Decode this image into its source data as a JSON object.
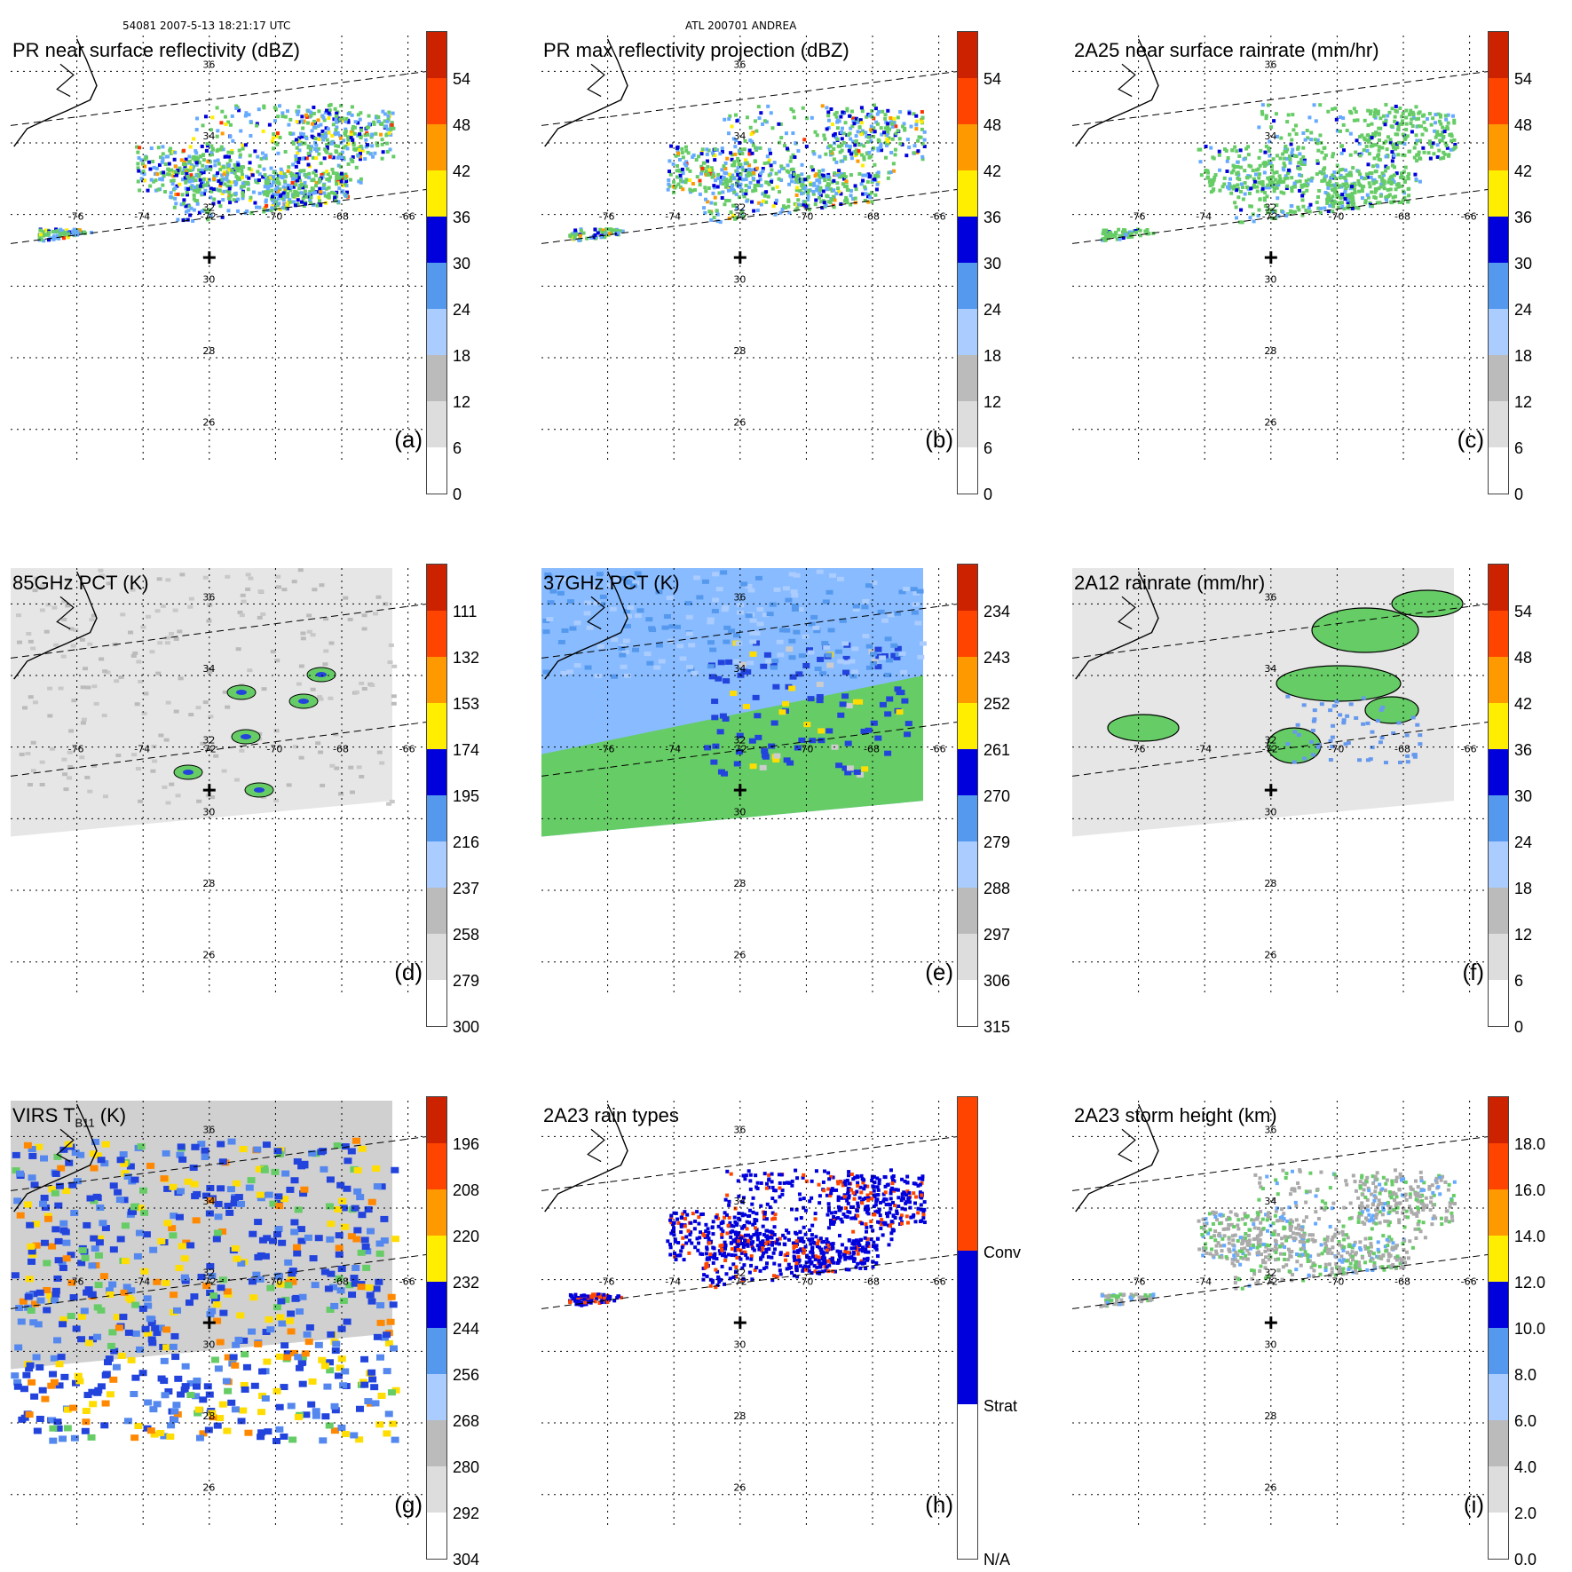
{
  "header": {
    "orbit": "54081 2007-5-13 18:21:17 UTC",
    "storm": "ATL 200701 ANDREA"
  },
  "map": {
    "lon_labels": [
      "-76",
      "-74",
      "-72",
      "-70",
      "-68",
      "-66"
    ],
    "lat_labels": [
      "36",
      "34",
      "32",
      "30",
      "28",
      "26"
    ],
    "storm_center": {
      "lon": -72,
      "lat": 30.8
    }
  },
  "chart_data": [
    {
      "id": "a",
      "type": "heatmap",
      "title": "PR near surface reflectivity (dBZ)",
      "letter": "(a)",
      "colorbar": {
        "ticks": [
          "0",
          "6",
          "12",
          "18",
          "24",
          "30",
          "36",
          "42",
          "48",
          "54"
        ],
        "range": [
          0,
          60
        ]
      },
      "swath": "PR"
    },
    {
      "id": "b",
      "type": "heatmap",
      "title": "PR max reflectivity projection (dBZ)",
      "letter": "(b)",
      "colorbar": {
        "ticks": [
          "0",
          "6",
          "12",
          "18",
          "24",
          "30",
          "36",
          "42",
          "48",
          "54"
        ],
        "range": [
          0,
          60
        ]
      },
      "swath": "PR"
    },
    {
      "id": "c",
      "type": "heatmap",
      "title": "2A25 near surface rainrate (mm/hr)",
      "letter": "(c)",
      "colorbar": {
        "ticks": [
          "0",
          "6",
          "12",
          "18",
          "24",
          "30",
          "36",
          "42",
          "48",
          "54"
        ],
        "range": [
          0,
          60
        ]
      },
      "swath": "PR"
    },
    {
      "id": "d",
      "type": "heatmap",
      "title": "85GHz PCT (K)",
      "letter": "(d)",
      "colorbar": {
        "ticks": [
          "300",
          "279",
          "258",
          "237",
          "216",
          "195",
          "174",
          "153",
          "132",
          "111"
        ],
        "range": [
          300,
          90
        ]
      },
      "swath": "TMI"
    },
    {
      "id": "e",
      "type": "heatmap",
      "title": "37GHz PCT (K)",
      "letter": "(e)",
      "colorbar": {
        "ticks": [
          "315",
          "306",
          "297",
          "288",
          "279",
          "270",
          "261",
          "252",
          "243",
          "234"
        ],
        "range": [
          315,
          225
        ]
      },
      "swath": "TMI"
    },
    {
      "id": "f",
      "type": "heatmap",
      "title": "2A12 rainrate (mm/hr)",
      "letter": "(f)",
      "colorbar": {
        "ticks": [
          "0",
          "6",
          "12",
          "18",
          "24",
          "30",
          "36",
          "42",
          "48",
          "54"
        ],
        "range": [
          0,
          60
        ]
      },
      "swath": "TMI"
    },
    {
      "id": "g",
      "type": "heatmap",
      "title_main": "VIRS T",
      "title_sub": "B11",
      "title_unit": " (K)",
      "letter": "(g)",
      "colorbar": {
        "ticks": [
          "304",
          "292",
          "280",
          "268",
          "256",
          "244",
          "232",
          "220",
          "208",
          "196"
        ],
        "range": [
          304,
          184
        ]
      },
      "swath": "VIRS"
    },
    {
      "id": "h",
      "type": "heatmap",
      "title": "2A23 rain types",
      "letter": "(h)",
      "categories": [
        "N/A",
        "Strat",
        "Conv"
      ],
      "colorbar": {
        "ticks": [
          "N/A",
          "Strat",
          "Conv"
        ]
      },
      "swath": "PR"
    },
    {
      "id": "i",
      "type": "heatmap",
      "title": "2A23 storm height (km)",
      "letter": "(i)",
      "colorbar": {
        "ticks": [
          "0.0",
          "2.0",
          "4.0",
          "6.0",
          "8.0",
          "10.0",
          "12.0",
          "14.0",
          "16.0",
          "18.0"
        ],
        "range": [
          0,
          20
        ]
      },
      "swath": "PR"
    }
  ],
  "colors": {
    "bar": [
      "#ffffff",
      "#cccccc",
      "#999999",
      "#66cc66",
      "#66aaff",
      "#0000dd",
      "#ffee00",
      "#ff9900",
      "#ff3300",
      "#992200",
      "#551100"
    ],
    "rain_types": {
      "na": "#ffffff",
      "strat": "#0000dd",
      "conv": "#ff4400"
    }
  }
}
